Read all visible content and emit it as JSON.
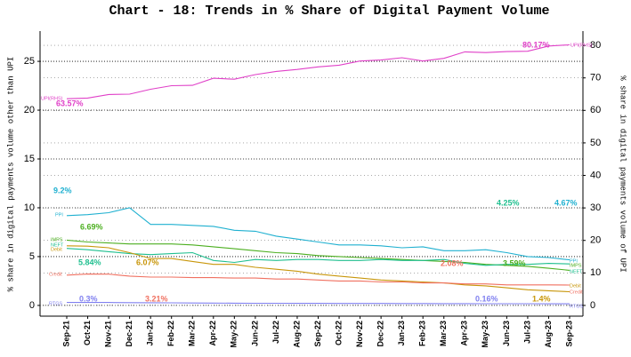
{
  "chart_data": {
    "type": "line",
    "title": "Chart - 18: Trends in % Share of Digital Payment Volume",
    "y_label": "% share in digital payments volume other than UPI",
    "y2_label": "% share in digital payments volume of UPI",
    "categories": [
      "Sep-21",
      "Oct-21",
      "Nov-21",
      "Dec-21",
      "Jan-22",
      "Feb-22",
      "Mar-22",
      "Apr-22",
      "May-22",
      "Jun-22",
      "Jul-22",
      "Aug-22",
      "Sep-22",
      "Oct-22",
      "Nov-22",
      "Dec-22",
      "Jan-23",
      "Feb-23",
      "Mar-23",
      "Apr-23",
      "May-23",
      "Jun-23",
      "Jul-23",
      "Aug-23",
      "Sep-23"
    ],
    "series": [
      {
        "name": "UPI(RHS)",
        "color": "#e040c8",
        "axis": "y2",
        "values": [
          63.57,
          63.8,
          64.9,
          65.0,
          66.5,
          67.6,
          67.7,
          69.9,
          69.6,
          71.0,
          72.0,
          72.6,
          73.4,
          73.9,
          75.2,
          75.5,
          76.2,
          75.2,
          76.0,
          78.0,
          77.8,
          78.1,
          78.2,
          79.8,
          80.17
        ]
      },
      {
        "name": "PPI",
        "color": "#1fb0d0",
        "values": [
          9.2,
          9.3,
          9.5,
          10.0,
          8.3,
          8.3,
          8.2,
          8.1,
          7.7,
          7.6,
          7.1,
          6.8,
          6.5,
          6.2,
          6.2,
          6.1,
          5.9,
          6.0,
          5.6,
          5.6,
          5.7,
          5.4,
          5.0,
          4.9,
          4.67
        ]
      },
      {
        "name": "IMPS",
        "color": "#4caf20",
        "values": [
          6.69,
          6.5,
          6.4,
          6.3,
          6.3,
          6.3,
          6.2,
          6.0,
          5.8,
          5.6,
          5.4,
          5.3,
          5.1,
          5.0,
          4.9,
          4.8,
          4.7,
          4.6,
          4.5,
          4.4,
          4.2,
          4.1,
          4.0,
          3.8,
          3.59
        ]
      },
      {
        "name": "NEFT",
        "color": "#1fbf8f",
        "values": [
          5.84,
          5.7,
          5.5,
          5.3,
          5.2,
          5.3,
          5.4,
          4.6,
          4.4,
          4.7,
          4.6,
          4.7,
          4.7,
          4.6,
          4.6,
          4.7,
          4.6,
          4.6,
          4.7,
          4.3,
          4.1,
          4.2,
          4.2,
          4.3,
          4.25
        ]
      },
      {
        "name": "Debit",
        "color": "#c8960a",
        "values": [
          6.1,
          6.07,
          5.9,
          5.4,
          4.8,
          4.8,
          4.5,
          4.2,
          4.2,
          3.9,
          3.7,
          3.5,
          3.2,
          3.0,
          2.8,
          2.6,
          2.5,
          2.4,
          2.3,
          2.1,
          2.0,
          1.8,
          1.6,
          1.5,
          1.4
        ]
      },
      {
        "name": "Credit",
        "color": "#f07060",
        "values": [
          3.1,
          3.21,
          3.2,
          3.0,
          2.9,
          2.9,
          2.85,
          2.85,
          2.8,
          2.8,
          2.7,
          2.7,
          2.6,
          2.5,
          2.5,
          2.4,
          2.4,
          2.3,
          2.3,
          2.2,
          2.2,
          2.1,
          2.1,
          2.1,
          2.08
        ]
      },
      {
        "name": "RTGS",
        "color": "#8080f0",
        "values": [
          0.3,
          0.3,
          0.3,
          0.28,
          0.27,
          0.26,
          0.25,
          0.24,
          0.23,
          0.22,
          0.22,
          0.21,
          0.21,
          0.2,
          0.2,
          0.2,
          0.19,
          0.19,
          0.18,
          0.18,
          0.17,
          0.17,
          0.17,
          0.16,
          0.16
        ]
      }
    ],
    "annotations": [
      "63.57%",
      "80.17%",
      "9.2%",
      "6.69%",
      "5.84%",
      "6.07%",
      "3.21%",
      "0.3%",
      "4.25%",
      "4.67%",
      "2.08%",
      "3.59%",
      "1.4%",
      "0.16%"
    ],
    "ylim": [
      -1.1,
      28.1
    ],
    "yticks": [
      0,
      5,
      10,
      15,
      20,
      25
    ],
    "y2lim": [
      -3.3,
      84.4
    ],
    "y2ticks": [
      0,
      10,
      20,
      30,
      40,
      50,
      60,
      70,
      80
    ],
    "grid": true
  }
}
